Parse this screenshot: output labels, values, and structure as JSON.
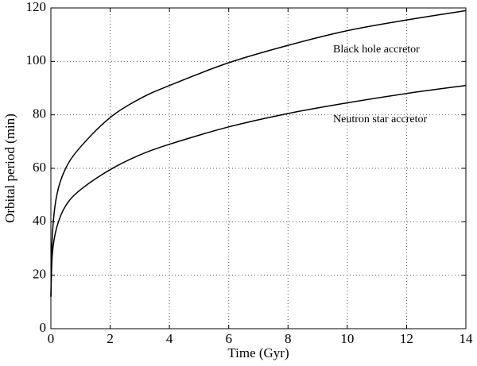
{
  "chart_data": {
    "type": "line",
    "xlabel": "Time (Gyr)",
    "ylabel": "Orbital period (min)",
    "x": [
      0,
      0.05,
      0.2,
      0.5,
      1,
      2,
      3,
      4,
      6,
      8,
      10,
      12,
      14
    ],
    "series": [
      {
        "name": "Black hole accretor",
        "color": "#000000",
        "values": [
          12,
          35,
          50,
          60,
          68,
          79,
          86,
          91,
          99.5,
          106,
          111.5,
          115.5,
          119
        ]
      },
      {
        "name": "Neutron star accretor",
        "color": "#000000",
        "values": [
          12,
          28,
          38,
          46,
          52,
          59.5,
          65,
          69,
          75.5,
          80.5,
          84.5,
          88,
          91
        ]
      }
    ],
    "annotations": [
      "Black hole accretor",
      "Neutron star accretor"
    ],
    "xlim": [
      0,
      14
    ],
    "xticks": [
      0,
      2,
      4,
      6,
      8,
      10,
      12,
      14
    ],
    "ylim": [
      0,
      120
    ],
    "yticks": [
      0,
      20,
      40,
      60,
      80,
      100,
      120
    ],
    "grid": true
  }
}
